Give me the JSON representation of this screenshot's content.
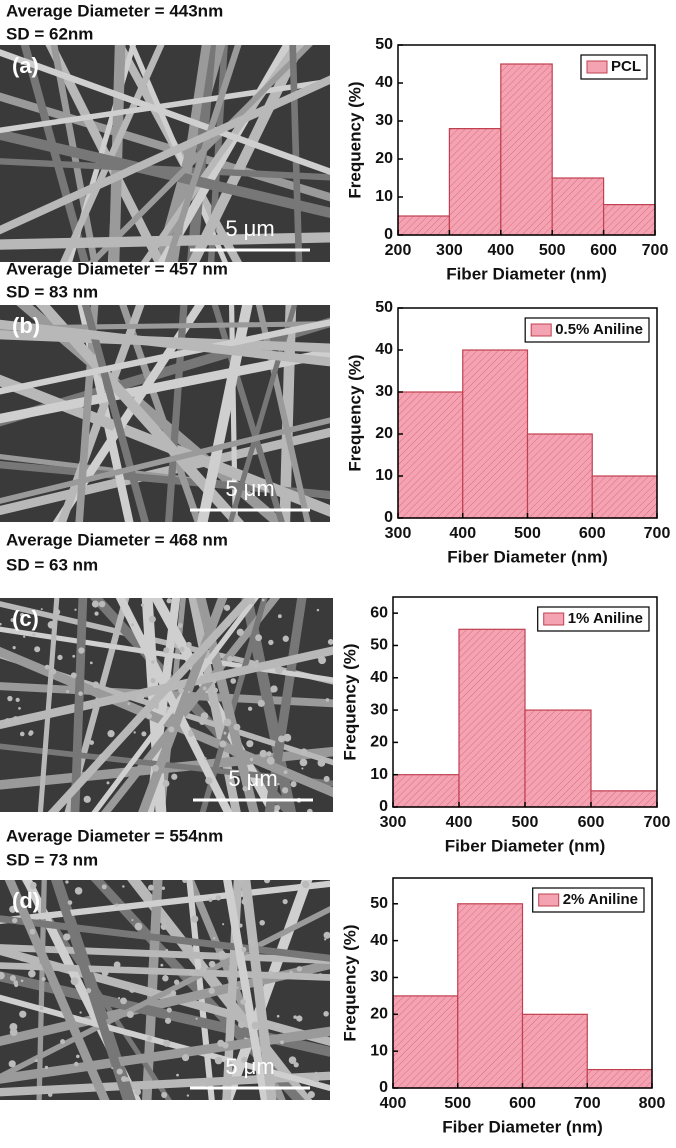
{
  "chart_data": [
    {
      "type": "histogram",
      "caption": [
        "Average Diameter = 443nm",
        "SD = 62nm"
      ],
      "panel_label": "(a)",
      "scale_bar": "5 μm",
      "xlabel": "Fiber Diameter (nm)",
      "ylabel": "Frequency (%)",
      "series": [
        {
          "name": "PCL",
          "color": "#f4a3b3",
          "values": [
            5,
            28,
            45,
            15,
            8
          ]
        }
      ],
      "bins": [
        200,
        300,
        400,
        500,
        600,
        700
      ],
      "xlim": [
        200,
        700
      ],
      "xticks": [
        200,
        300,
        400,
        500,
        600,
        700
      ],
      "ylim": [
        0,
        50
      ],
      "yticks": [
        0,
        10,
        20,
        30,
        40,
        50
      ],
      "legend": "upper right"
    },
    {
      "type": "histogram",
      "caption": [
        "Average Diameter = 457 nm",
        "SD = 83 nm"
      ],
      "panel_label": "(b)",
      "scale_bar": "5 μm",
      "xlabel": "Fiber Diameter (nm)",
      "ylabel": "Frequency (%)",
      "series": [
        {
          "name": "0.5% Aniline",
          "color": "#f4a3b3",
          "values": [
            30,
            40,
            20,
            10
          ]
        }
      ],
      "bins": [
        300,
        400,
        500,
        600,
        700
      ],
      "xlim": [
        300,
        700
      ],
      "xticks": [
        300,
        400,
        500,
        600,
        700
      ],
      "ylim": [
        0,
        50
      ],
      "yticks": [
        0,
        10,
        20,
        30,
        40,
        50
      ],
      "legend": "upper right"
    },
    {
      "type": "histogram",
      "caption": [
        "Average Diameter = 468 nm",
        "SD = 63 nm"
      ],
      "panel_label": "(c)",
      "scale_bar": "5 μm",
      "xlabel": "Fiber Diameter (nm)",
      "ylabel": "Frequency (%)",
      "series": [
        {
          "name": "1% Aniline",
          "color": "#f4a3b3",
          "values": [
            10,
            55,
            30,
            5
          ]
        }
      ],
      "bins": [
        300,
        400,
        500,
        600,
        700
      ],
      "xlim": [
        300,
        700
      ],
      "xticks": [
        300,
        400,
        500,
        600,
        700
      ],
      "ylim": [
        0,
        65
      ],
      "yticks": [
        0,
        10,
        20,
        30,
        40,
        50,
        60
      ],
      "legend": "upper right"
    },
    {
      "type": "histogram",
      "caption": [
        "Average Diameter = 554nm",
        "SD = 73 nm"
      ],
      "panel_label": "(d)",
      "scale_bar": "5 μm",
      "xlabel": "Fiber Diameter (nm)",
      "ylabel": "Frequency (%)",
      "series": [
        {
          "name": "2% Aniline",
          "color": "#f4a3b3",
          "values": [
            25,
            50,
            20,
            5
          ]
        }
      ],
      "bins": [
        400,
        500,
        600,
        700,
        800
      ],
      "xlim": [
        400,
        800
      ],
      "xticks": [
        400,
        500,
        600,
        700,
        800
      ],
      "ylim": [
        0,
        57
      ],
      "yticks": [
        0,
        10,
        20,
        30,
        40,
        50
      ],
      "legend": "upper right"
    }
  ]
}
